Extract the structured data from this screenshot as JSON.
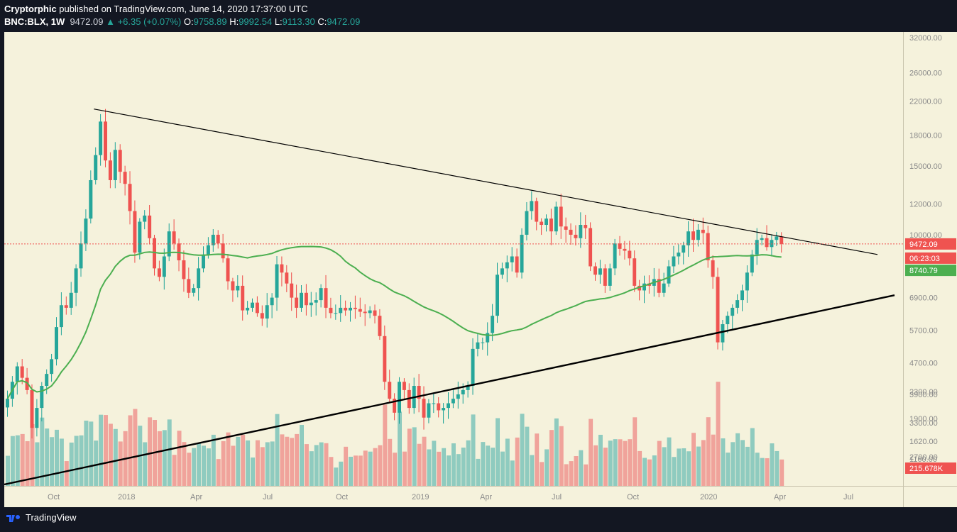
{
  "header": {
    "author": "Cryptorphic",
    "published": "published on TradingView.com, June 14, 2020 17:37:00 UTC",
    "symbol": "BNC:BLX, 1W",
    "last": "9472.09",
    "change": "+6.35 (+0.07%)",
    "o_label": "O:",
    "o_value": "9758.89",
    "h_label": "H:",
    "h_value": "9992.54",
    "l_label": "L:",
    "l_value": "9113.30",
    "c_label": "C:",
    "c_value": "9472.09"
  },
  "footer": {
    "brand": "TradingView"
  },
  "colors": {
    "up": "#26a69a",
    "down": "#ef5350",
    "vol_up": "#8fcbbf",
    "vol_down": "#f0a39b",
    "ma": "#4caf50",
    "bg": "#f5f2dc",
    "price_line": "#ef5350"
  },
  "chart_data": {
    "type": "candlestick",
    "symbol": "BNC:BLX",
    "interval": "1W",
    "y_scale": "log",
    "ylim": [
      2350,
      32000
    ],
    "price_ticks": [
      "32000.00",
      "26000.00",
      "22000.00",
      "18000.00",
      "15000.00",
      "12000.00",
      "10000.00",
      "6900.00",
      "5700.00",
      "4700.00",
      "3900.00",
      "3300.00",
      "2700.00"
    ],
    "volume_ticks": [
      "2300.00",
      "1900.00",
      "1620.00",
      "1160.00"
    ],
    "time_ticks": [
      "Oct",
      "2018",
      "Apr",
      "Jul",
      "Oct",
      "2019",
      "Apr",
      "Jul",
      "Oct",
      "2020",
      "Apr",
      "Jul"
    ],
    "badges": [
      {
        "label": "9472.09",
        "kind": "last-price",
        "color": "#ef5350"
      },
      {
        "label": "06:23:03",
        "kind": "countdown",
        "color": "#ef5350"
      },
      {
        "label": "8740.79",
        "kind": "moving-average",
        "color": "#4caf50"
      },
      {
        "label": "215.678K",
        "kind": "volume",
        "color": "#ef5350"
      }
    ],
    "last_price": 9472.09,
    "ma_value": 8740.79,
    "close": [
      3800,
      4200,
      4600,
      4300,
      4000,
      3200,
      3600,
      4100,
      4400,
      4800,
      5800,
      6600,
      6500,
      7100,
      8200,
      9500,
      11000,
      13800,
      16000,
      19500,
      15500,
      13800,
      16500,
      14500,
      13500,
      11500,
      9000,
      10800,
      11200,
      9800,
      8200,
      7800,
      8800,
      10200,
      9500,
      8600,
      7700,
      7100,
      7300,
      8200,
      8900,
      9400,
      10000,
      9500,
      8700,
      7600,
      7200,
      7400,
      6400,
      6500,
      6700,
      6300,
      6100,
      6600,
      6900,
      8400,
      8000,
      7500,
      6900,
      6500,
      7100,
      6600,
      6700,
      6800,
      7300,
      6500,
      6300,
      6300,
      6500,
      6400,
      6500,
      6450,
      6350,
      6300,
      6400,
      6200,
      5500,
      4200,
      3800,
      3500,
      4200,
      4000,
      3600,
      4100,
      3800,
      3400,
      3700,
      3700,
      3550,
      3600,
      3700,
      3800,
      3900,
      4000,
      4100,
      5100,
      5300,
      5300,
      5600,
      6200,
      7900,
      8200,
      8500,
      8800,
      8000,
      10000,
      11500,
      12200,
      10800,
      10600,
      11000,
      10200,
      11800,
      10500,
      10300,
      10000,
      9800,
      10600,
      10400,
      8300,
      7900,
      8200,
      7400,
      8200,
      9500,
      9200,
      9100,
      8700,
      7400,
      7200,
      7500,
      7400,
      7700,
      7100,
      7500,
      8300,
      8800,
      9000,
      9400,
      10200,
      9700,
      10300,
      10100,
      8600,
      7800,
      5300,
      5900,
      6200,
      6500,
      6800,
      7200,
      8000,
      8900,
      9700,
      9800,
      9300,
      9700,
      9900,
      9472
    ]
  }
}
